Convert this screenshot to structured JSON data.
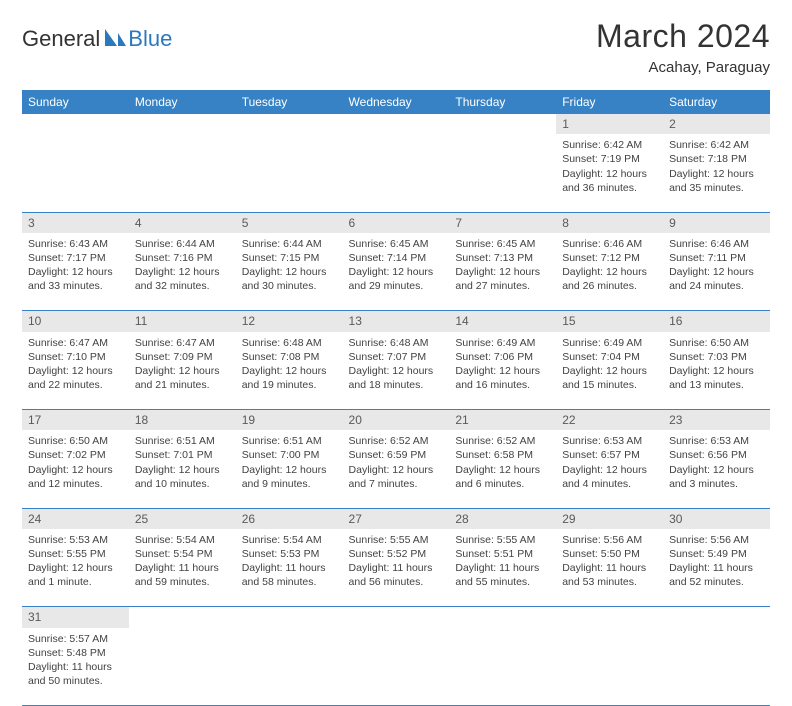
{
  "logo": {
    "part1": "General",
    "part2": "Blue"
  },
  "title": "March 2024",
  "subtitle": "Acahay, Paraguay",
  "header_bg": "#3682c4",
  "header_fg": "#ffffff",
  "daynum_bg": "#e8e8e8",
  "border_color": "#3682c4",
  "columns": [
    "Sunday",
    "Monday",
    "Tuesday",
    "Wednesday",
    "Thursday",
    "Friday",
    "Saturday"
  ],
  "weeks": [
    [
      null,
      null,
      null,
      null,
      null,
      {
        "n": "1",
        "sr": "Sunrise: 6:42 AM",
        "ss": "Sunset: 7:19 PM",
        "dl": "Daylight: 12 hours and 36 minutes."
      },
      {
        "n": "2",
        "sr": "Sunrise: 6:42 AM",
        "ss": "Sunset: 7:18 PM",
        "dl": "Daylight: 12 hours and 35 minutes."
      }
    ],
    [
      {
        "n": "3",
        "sr": "Sunrise: 6:43 AM",
        "ss": "Sunset: 7:17 PM",
        "dl": "Daylight: 12 hours and 33 minutes."
      },
      {
        "n": "4",
        "sr": "Sunrise: 6:44 AM",
        "ss": "Sunset: 7:16 PM",
        "dl": "Daylight: 12 hours and 32 minutes."
      },
      {
        "n": "5",
        "sr": "Sunrise: 6:44 AM",
        "ss": "Sunset: 7:15 PM",
        "dl": "Daylight: 12 hours and 30 minutes."
      },
      {
        "n": "6",
        "sr": "Sunrise: 6:45 AM",
        "ss": "Sunset: 7:14 PM",
        "dl": "Daylight: 12 hours and 29 minutes."
      },
      {
        "n": "7",
        "sr": "Sunrise: 6:45 AM",
        "ss": "Sunset: 7:13 PM",
        "dl": "Daylight: 12 hours and 27 minutes."
      },
      {
        "n": "8",
        "sr": "Sunrise: 6:46 AM",
        "ss": "Sunset: 7:12 PM",
        "dl": "Daylight: 12 hours and 26 minutes."
      },
      {
        "n": "9",
        "sr": "Sunrise: 6:46 AM",
        "ss": "Sunset: 7:11 PM",
        "dl": "Daylight: 12 hours and 24 minutes."
      }
    ],
    [
      {
        "n": "10",
        "sr": "Sunrise: 6:47 AM",
        "ss": "Sunset: 7:10 PM",
        "dl": "Daylight: 12 hours and 22 minutes."
      },
      {
        "n": "11",
        "sr": "Sunrise: 6:47 AM",
        "ss": "Sunset: 7:09 PM",
        "dl": "Daylight: 12 hours and 21 minutes."
      },
      {
        "n": "12",
        "sr": "Sunrise: 6:48 AM",
        "ss": "Sunset: 7:08 PM",
        "dl": "Daylight: 12 hours and 19 minutes."
      },
      {
        "n": "13",
        "sr": "Sunrise: 6:48 AM",
        "ss": "Sunset: 7:07 PM",
        "dl": "Daylight: 12 hours and 18 minutes."
      },
      {
        "n": "14",
        "sr": "Sunrise: 6:49 AM",
        "ss": "Sunset: 7:06 PM",
        "dl": "Daylight: 12 hours and 16 minutes."
      },
      {
        "n": "15",
        "sr": "Sunrise: 6:49 AM",
        "ss": "Sunset: 7:04 PM",
        "dl": "Daylight: 12 hours and 15 minutes."
      },
      {
        "n": "16",
        "sr": "Sunrise: 6:50 AM",
        "ss": "Sunset: 7:03 PM",
        "dl": "Daylight: 12 hours and 13 minutes."
      }
    ],
    [
      {
        "n": "17",
        "sr": "Sunrise: 6:50 AM",
        "ss": "Sunset: 7:02 PM",
        "dl": "Daylight: 12 hours and 12 minutes."
      },
      {
        "n": "18",
        "sr": "Sunrise: 6:51 AM",
        "ss": "Sunset: 7:01 PM",
        "dl": "Daylight: 12 hours and 10 minutes."
      },
      {
        "n": "19",
        "sr": "Sunrise: 6:51 AM",
        "ss": "Sunset: 7:00 PM",
        "dl": "Daylight: 12 hours and 9 minutes."
      },
      {
        "n": "20",
        "sr": "Sunrise: 6:52 AM",
        "ss": "Sunset: 6:59 PM",
        "dl": "Daylight: 12 hours and 7 minutes."
      },
      {
        "n": "21",
        "sr": "Sunrise: 6:52 AM",
        "ss": "Sunset: 6:58 PM",
        "dl": "Daylight: 12 hours and 6 minutes."
      },
      {
        "n": "22",
        "sr": "Sunrise: 6:53 AM",
        "ss": "Sunset: 6:57 PM",
        "dl": "Daylight: 12 hours and 4 minutes."
      },
      {
        "n": "23",
        "sr": "Sunrise: 6:53 AM",
        "ss": "Sunset: 6:56 PM",
        "dl": "Daylight: 12 hours and 3 minutes."
      }
    ],
    [
      {
        "n": "24",
        "sr": "Sunrise: 5:53 AM",
        "ss": "Sunset: 5:55 PM",
        "dl": "Daylight: 12 hours and 1 minute."
      },
      {
        "n": "25",
        "sr": "Sunrise: 5:54 AM",
        "ss": "Sunset: 5:54 PM",
        "dl": "Daylight: 11 hours and 59 minutes."
      },
      {
        "n": "26",
        "sr": "Sunrise: 5:54 AM",
        "ss": "Sunset: 5:53 PM",
        "dl": "Daylight: 11 hours and 58 minutes."
      },
      {
        "n": "27",
        "sr": "Sunrise: 5:55 AM",
        "ss": "Sunset: 5:52 PM",
        "dl": "Daylight: 11 hours and 56 minutes."
      },
      {
        "n": "28",
        "sr": "Sunrise: 5:55 AM",
        "ss": "Sunset: 5:51 PM",
        "dl": "Daylight: 11 hours and 55 minutes."
      },
      {
        "n": "29",
        "sr": "Sunrise: 5:56 AM",
        "ss": "Sunset: 5:50 PM",
        "dl": "Daylight: 11 hours and 53 minutes."
      },
      {
        "n": "30",
        "sr": "Sunrise: 5:56 AM",
        "ss": "Sunset: 5:49 PM",
        "dl": "Daylight: 11 hours and 52 minutes."
      }
    ],
    [
      {
        "n": "31",
        "sr": "Sunrise: 5:57 AM",
        "ss": "Sunset: 5:48 PM",
        "dl": "Daylight: 11 hours and 50 minutes."
      },
      null,
      null,
      null,
      null,
      null,
      null
    ]
  ]
}
